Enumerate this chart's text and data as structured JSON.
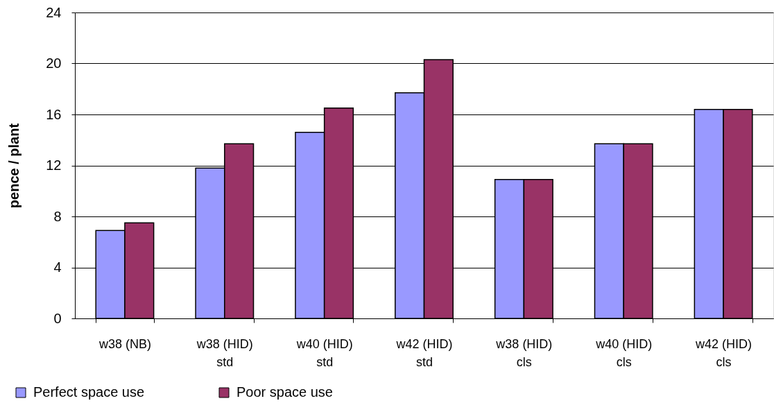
{
  "chart_data": {
    "type": "bar",
    "ylabel": "pence / plant",
    "categories": [
      "w38 (NB)",
      "w38 (HID)\nstd",
      "w40 (HID)\nstd",
      "w42 (HID)\nstd",
      "w38 (HID)\ncls",
      "w40 (HID)\ncls",
      "w42 (HID)\ncls"
    ],
    "series": [
      {
        "name": "Perfect space use",
        "color": "#9999ff",
        "values": [
          6.9,
          11.8,
          14.6,
          17.7,
          10.9,
          13.7,
          16.4
        ]
      },
      {
        "name": "Poor space use",
        "color": "#993366",
        "values": [
          7.5,
          13.7,
          16.5,
          20.3,
          10.9,
          13.7,
          16.4
        ]
      }
    ],
    "ylim": [
      0,
      24
    ],
    "yticks": [
      0,
      4,
      8,
      12,
      16,
      20,
      24
    ],
    "grid": "y",
    "legend": "bottom left"
  }
}
